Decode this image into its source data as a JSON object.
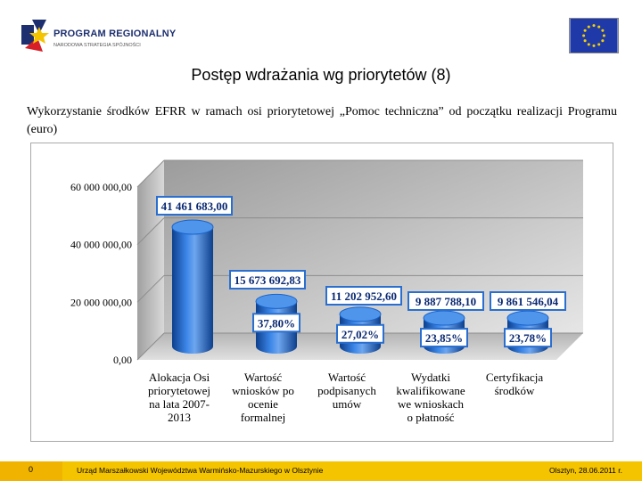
{
  "header": {
    "logo_title": "PROGRAM REGIONALNY",
    "logo_subtitle": "NARODOWA STRATEGIA SPÓJNOŚCI"
  },
  "page_title": "Postęp wdrażania wg priorytetów (8)",
  "subtitle": "Wykorzystanie środków EFRR w ramach osi priorytetowej „Pomoc techniczna” od początku realizacji Programu (euro)",
  "footer": {
    "page_number": "0",
    "organization": "Urząd Marszałkowski Województwa Warmińsko-Mazurskiego w Olsztynie",
    "date": "Olsztyn, 28.06.2011 r."
  },
  "colors": {
    "bar": "#1a63c9",
    "bar_light": "#6ea6ef",
    "bar_dark": "#0d3f8c",
    "label_border": "#2a6fd0",
    "label_text": "#0b2a72",
    "footer": "#f5c400"
  },
  "chart_data": {
    "type": "bar",
    "style": "3d-cylinder",
    "categories": [
      [
        "Alokacja Osi",
        "priorytetowej",
        "na lata 2007-",
        "2013"
      ],
      [
        "Wartość",
        "wniosków po",
        "ocenie",
        "formalnej"
      ],
      [
        "Wartość",
        "podpisanych",
        "umów"
      ],
      [
        "Wydatki",
        "kwalifikowane",
        "we wnioskach",
        "o płatność"
      ],
      [
        "Certyfikacja",
        "środków"
      ]
    ],
    "values": [
      41461683.0,
      15673692.83,
      11202952.6,
      9887788.1,
      9861546.04
    ],
    "value_labels": [
      "41 461 683,00",
      "15 673 692,83",
      "11 202 952,60",
      "9 887 788,10",
      "9 861 546,04"
    ],
    "percent_labels": [
      "",
      "37,80%",
      "27,02%",
      "23,85%",
      "23,78%"
    ],
    "y_tick_labels": [
      "0,00",
      "20 000 000,00",
      "40 000 000,00",
      "60 000 000,00"
    ],
    "y_tick_values": [
      0,
      20000000,
      40000000,
      60000000
    ],
    "ylim": [
      0,
      60000000
    ],
    "grid": true,
    "legend": "none"
  }
}
